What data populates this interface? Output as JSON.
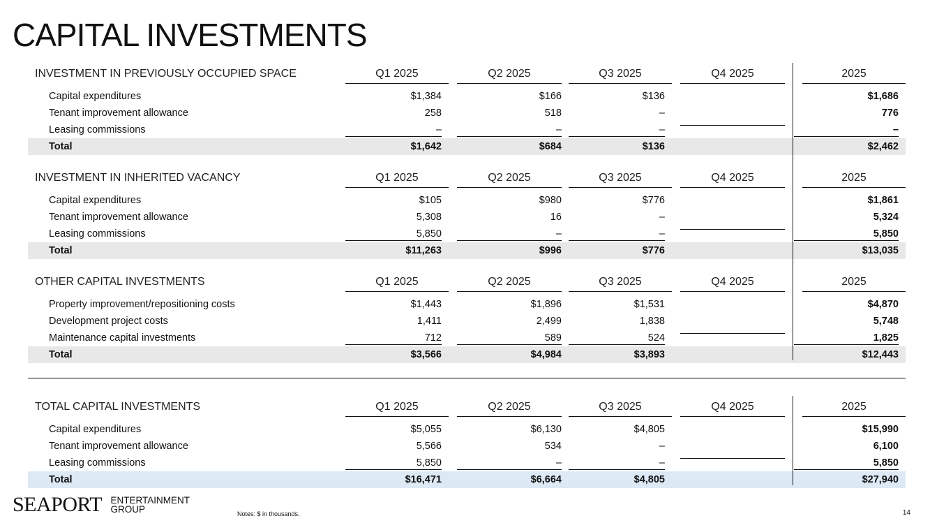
{
  "title": "CAPITAL INVESTMENTS",
  "sections": [
    {
      "heading": "INVESTMENT IN PREVIOUSLY OCCUPIED SPACE",
      "columns": [
        "Q1 2025",
        "Q2 2025",
        "Q3 2025",
        "Q4 2025",
        "2025"
      ],
      "rows": [
        {
          "label": "Capital expenditures",
          "values": [
            "$1,384",
            "$166",
            "$136",
            "",
            "$1,686"
          ]
        },
        {
          "label": "Tenant improvement allowance",
          "values": [
            "258",
            "518",
            "–",
            "",
            "776"
          ]
        },
        {
          "label": "Leasing commissions",
          "values": [
            "–",
            "–",
            "–",
            "",
            "–"
          ]
        }
      ],
      "total": {
        "label": "Total",
        "values": [
          "$1,642",
          "$684",
          "$136",
          "",
          "$2,462"
        ]
      }
    },
    {
      "heading": "INVESTMENT IN INHERITED VACANCY",
      "columns": [
        "Q1 2025",
        "Q2 2025",
        "Q3 2025",
        "Q4 2025",
        "2025"
      ],
      "rows": [
        {
          "label": "Capital expenditures",
          "values": [
            "$105",
            "$980",
            "$776",
            "",
            "$1,861"
          ]
        },
        {
          "label": "Tenant improvement allowance",
          "values": [
            "5,308",
            "16",
            "–",
            "",
            "5,324"
          ]
        },
        {
          "label": "Leasing commissions",
          "values": [
            "5,850",
            "–",
            "–",
            "",
            "5,850"
          ]
        }
      ],
      "total": {
        "label": "Total",
        "values": [
          "$11,263",
          "$996",
          "$776",
          "",
          "$13,035"
        ]
      }
    },
    {
      "heading": "OTHER CAPITAL INVESTMENTS",
      "columns": [
        "Q1 2025",
        "Q2 2025",
        "Q3 2025",
        "Q4 2025",
        "2025"
      ],
      "rows": [
        {
          "label": "Property improvement/repositioning costs",
          "values": [
            "$1,443",
            "$1,896",
            "$1,531",
            "",
            "$4,870"
          ]
        },
        {
          "label": "Development project costs",
          "values": [
            "1,411",
            "2,499",
            "1,838",
            "",
            "5,748"
          ]
        },
        {
          "label": "Maintenance capital investments",
          "values": [
            "712",
            "589",
            "524",
            "",
            "1,825"
          ]
        }
      ],
      "total": {
        "label": "Total",
        "values": [
          "$3,566",
          "$4,984",
          "$3,893",
          "",
          "$12,443"
        ]
      }
    },
    {
      "heading": "TOTAL CAPITAL INVESTMENTS",
      "columns": [
        "Q1 2025",
        "Q2 2025",
        "Q3 2025",
        "Q4 2025",
        "2025"
      ],
      "rows": [
        {
          "label": "Capital expenditures",
          "values": [
            "$5,055",
            "$6,130",
            "$4,805",
            "",
            "$15,990"
          ]
        },
        {
          "label": "Tenant improvement allowance",
          "values": [
            "5,566",
            "534",
            "–",
            "",
            "6,100"
          ]
        },
        {
          "label": "Leasing commissions",
          "values": [
            "5,850",
            "–",
            "–",
            "",
            "5,850"
          ]
        }
      ],
      "total": {
        "label": "Total",
        "values": [
          "$16,471",
          "$6,664",
          "$4,805",
          "",
          "$27,940"
        ]
      }
    }
  ],
  "footer": {
    "logo_main": "SEAPORT",
    "logo_sub_1": "ENTERTAINMENT",
    "logo_sub_2": "GROUP",
    "notes": "Notes: $ in thousands.",
    "page_number": "14"
  },
  "colors": {
    "total_row_gray": "#e8e8e8",
    "total_row_blue": "#dde9f5",
    "text": "#111111"
  }
}
